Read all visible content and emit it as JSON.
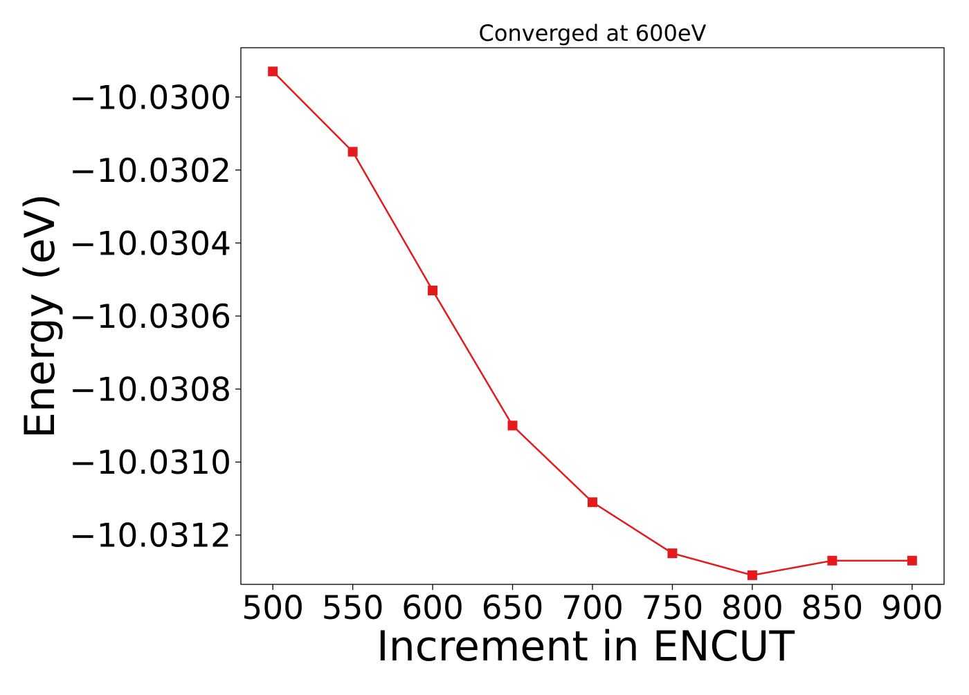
{
  "chart_data": {
    "type": "line",
    "title": "Converged at 600eV",
    "xlabel": "Increment in ENCUT",
    "ylabel": "Energy (eV)",
    "x": [
      500,
      550,
      600,
      650,
      700,
      750,
      800,
      850,
      900
    ],
    "series": [
      {
        "values": [
          -10.02993,
          -10.03015,
          -10.03053,
          -10.0309,
          -10.03111,
          -10.03125,
          -10.03131,
          -10.03127,
          -10.03127
        ],
        "color": "#e41a1c",
        "marker": "square"
      }
    ],
    "xticks": [
      500,
      550,
      600,
      650,
      700,
      750,
      800,
      850,
      900
    ],
    "xtick_labels": [
      "500",
      "550",
      "600",
      "650",
      "700",
      "750",
      "800",
      "850",
      "900"
    ],
    "yticks": [
      -10.03,
      -10.0302,
      -10.0304,
      -10.0306,
      -10.0308,
      -10.031,
      -10.0312
    ],
    "ytick_labels": [
      "−10.0300",
      "−10.0302",
      "−10.0304",
      "−10.0306",
      "−10.0308",
      "−10.0310",
      "−10.0312"
    ],
    "xlim": [
      480,
      920
    ],
    "ylim": [
      -10.031335,
      -10.029865
    ],
    "grid": false,
    "legend": "none"
  }
}
